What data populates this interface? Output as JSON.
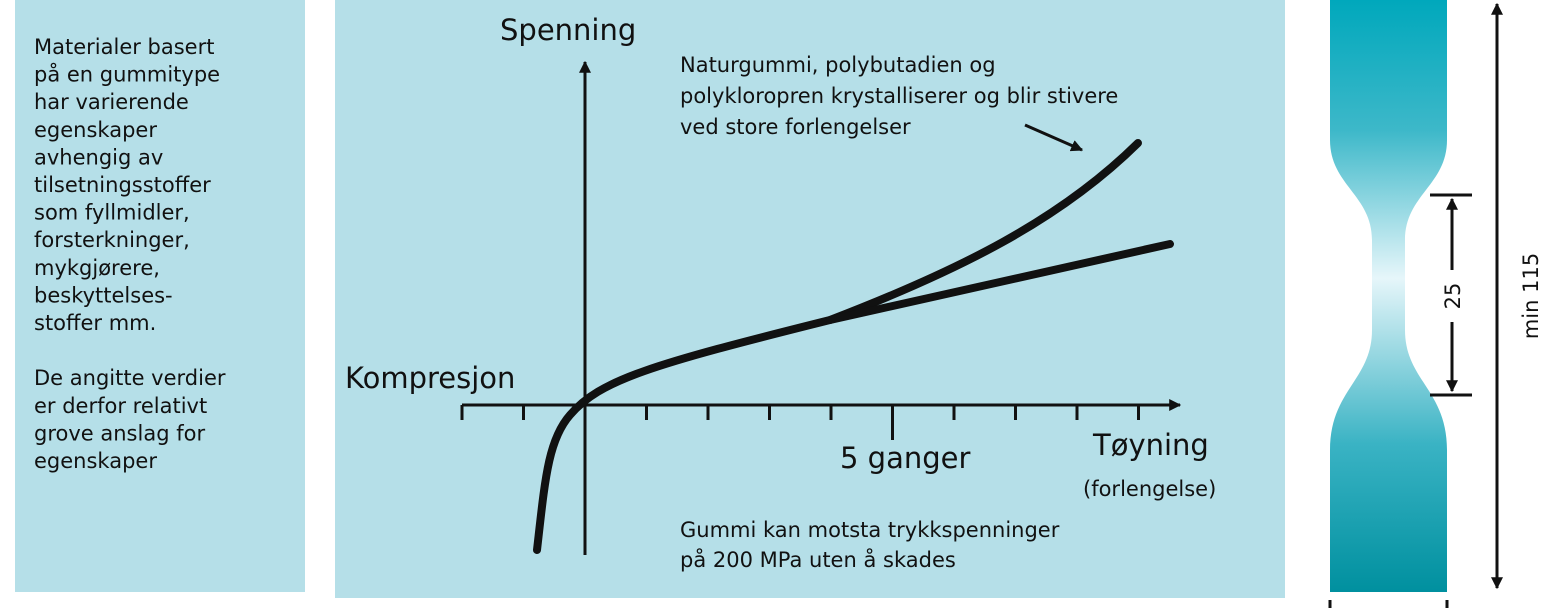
{
  "sidebar": {
    "paragraphs": [
      [
        "Materialer basert",
        "på en gummitype",
        "har varierende",
        "egenskaper",
        "avhengig av",
        "tilsetningsstoffer",
        "som fyllmidler,",
        "forsterkninger,",
        "mykgjørere,",
        "beskyttelses-",
        "stoffer mm."
      ],
      [
        "De angitte verdier",
        "er derfor relativt",
        "grove anslag for",
        "egenskaper"
      ]
    ]
  },
  "diagram": {
    "y_axis_label": "Spenning",
    "compression_label": "Kompresjon",
    "tick_label": "5 ganger",
    "x_axis_label": "Tøyning",
    "x_axis_sublabel": "(forlengelse)",
    "annotation": [
      "Naturgummi, polybutadien og",
      "polykloropren krystalliserer og blir stivere",
      "ved store forlengelser"
    ],
    "note": [
      "Gummi kan motsta trykkspenninger",
      "på 200 MPa uten å skades"
    ]
  },
  "specimen": {
    "gauge_length": "25",
    "total_length": "min 115"
  }
}
